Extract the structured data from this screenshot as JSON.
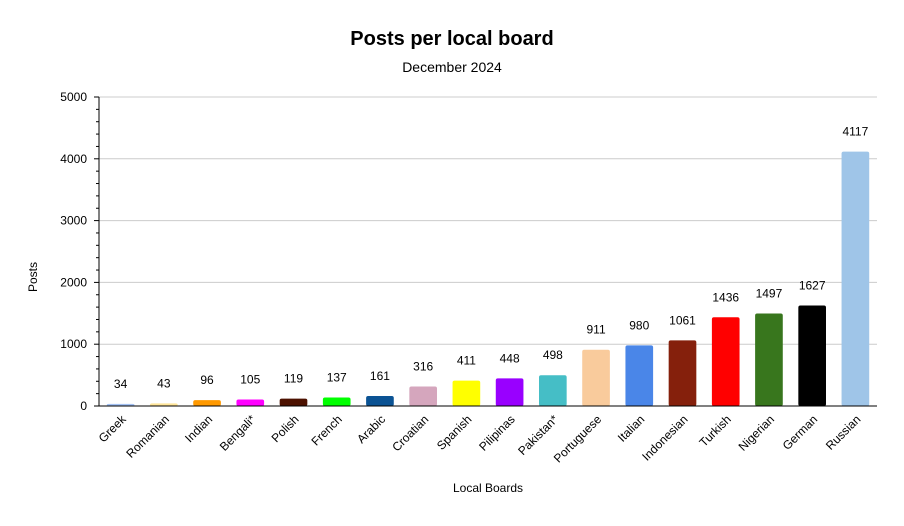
{
  "chart_data": {
    "type": "bar",
    "title": "Posts per local board",
    "subtitle": "December 2024",
    "xlabel": "Local Boards",
    "ylabel": "Posts",
    "ylim": [
      0,
      5000
    ],
    "yticks": [
      0,
      1000,
      2000,
      3000,
      4000,
      5000
    ],
    "grid": true,
    "legend": "none",
    "categories": [
      "Greek",
      "Romanian",
      "Indian",
      "Bengali*",
      "Polish",
      "French",
      "Arabic",
      "Croatian",
      "Spanish",
      "Pilipinas",
      "Pakistan*",
      "Portuguese",
      "Italian",
      "Indonesian",
      "Turkish",
      "Nigerian",
      "German",
      "Russian"
    ],
    "values": [
      34,
      43,
      96,
      105,
      119,
      137,
      161,
      316,
      411,
      448,
      498,
      911,
      980,
      1061,
      1436,
      1497,
      1627,
      4117
    ],
    "colors": [
      "#a4c2f4",
      "#ffe599",
      "#ff9900",
      "#ff00ff",
      "#4c1100",
      "#00ff00",
      "#0b5394",
      "#d5a6bd",
      "#ffff00",
      "#9900ff",
      "#45bec6",
      "#f9cb9c",
      "#4a86e8",
      "#85200c",
      "#ff0000",
      "#38761d",
      "#000000",
      "#9fc5e8"
    ]
  }
}
